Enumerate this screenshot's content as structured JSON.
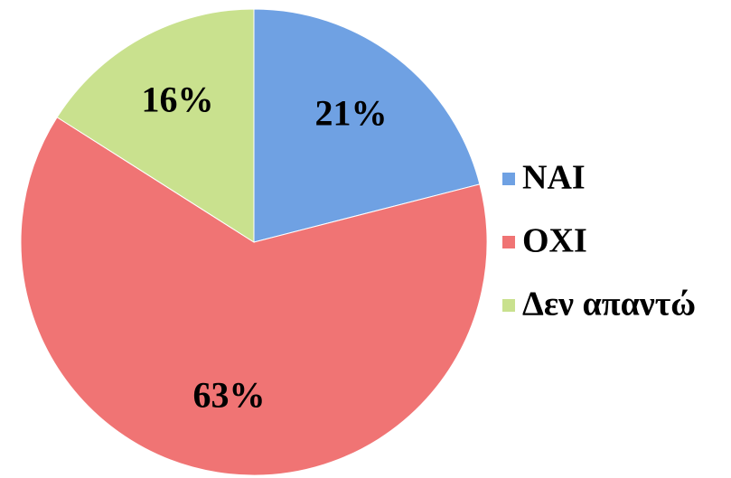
{
  "chart_data": {
    "type": "pie",
    "categories": [
      "ΝΑΙ",
      "ΟΧΙ",
      "Δεν απαντώ"
    ],
    "values": [
      21,
      63,
      16
    ],
    "value_labels": [
      "21%",
      "63%",
      "16%"
    ],
    "colors": [
      "#6fa1e3",
      "#f07474",
      "#c9e18e"
    ],
    "legend": "right"
  }
}
